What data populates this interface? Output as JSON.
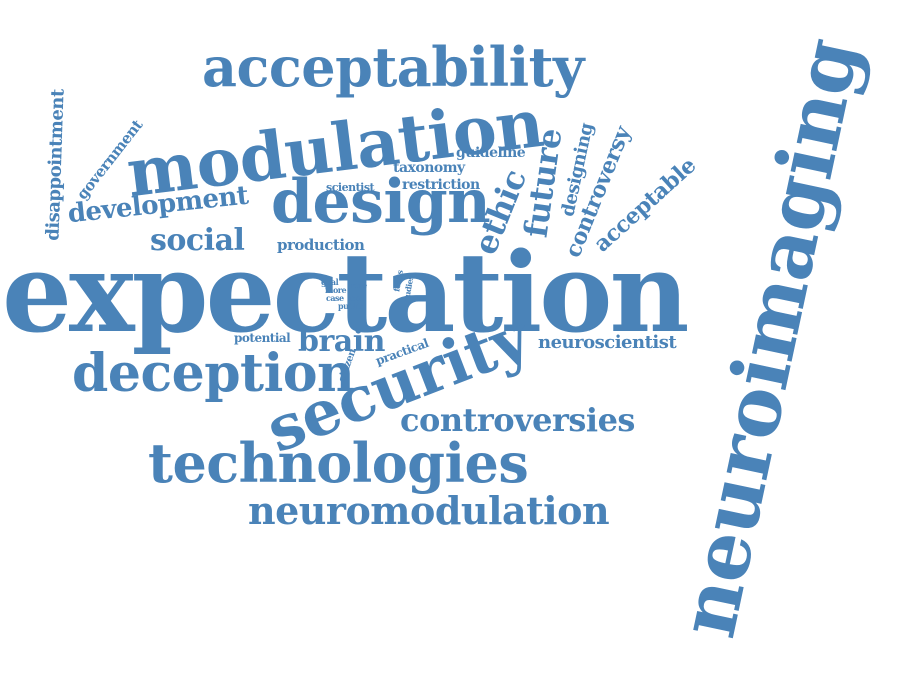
{
  "colors": {
    "word": "#4a83b8",
    "background": "#ffffff"
  },
  "words": [
    {
      "key": "expectation",
      "text": "expectation"
    },
    {
      "key": "neuroimaging",
      "text": "neuroimaging"
    },
    {
      "key": "acceptability",
      "text": "acceptability"
    },
    {
      "key": "modulation",
      "text": "modulation"
    },
    {
      "key": "design",
      "text": "design"
    },
    {
      "key": "security",
      "text": "security"
    },
    {
      "key": "technologies",
      "text": "technologies"
    },
    {
      "key": "deception",
      "text": "deception"
    },
    {
      "key": "neuromodulation",
      "text": "neuromodulation"
    },
    {
      "key": "controversies",
      "text": "controversies"
    },
    {
      "key": "social",
      "text": "social"
    },
    {
      "key": "development",
      "text": "development"
    },
    {
      "key": "brain",
      "text": "brain"
    },
    {
      "key": "neuroscientist",
      "text": "neuroscientist"
    },
    {
      "key": "ethic",
      "text": "ethic"
    },
    {
      "key": "future",
      "text": "future"
    },
    {
      "key": "disappointment",
      "text": "disappointment"
    },
    {
      "key": "government",
      "text": "government"
    },
    {
      "key": "designing",
      "text": "designing"
    },
    {
      "key": "controversy",
      "text": "controversy"
    },
    {
      "key": "acceptable",
      "text": "acceptable"
    },
    {
      "key": "production",
      "text": "production"
    },
    {
      "key": "taxonomy",
      "text": "taxonomy"
    },
    {
      "key": "guideline",
      "text": "guideline"
    },
    {
      "key": "restriction",
      "text": "restriction"
    },
    {
      "key": "scientist",
      "text": "scientist"
    },
    {
      "key": "potential",
      "text": "potential"
    },
    {
      "key": "practical",
      "text": "practical"
    },
    {
      "key": "citizen",
      "text": "citizen"
    },
    {
      "key": "goal",
      "text": "goal"
    },
    {
      "key": "more",
      "text": "more"
    },
    {
      "key": "role",
      "text": "role"
    },
    {
      "key": "case",
      "text": "case"
    },
    {
      "key": "tool",
      "text": "tool"
    },
    {
      "key": "public",
      "text": "public"
    },
    {
      "key": "focus",
      "text": "focus"
    },
    {
      "key": "studies",
      "text": "studies"
    }
  ]
}
